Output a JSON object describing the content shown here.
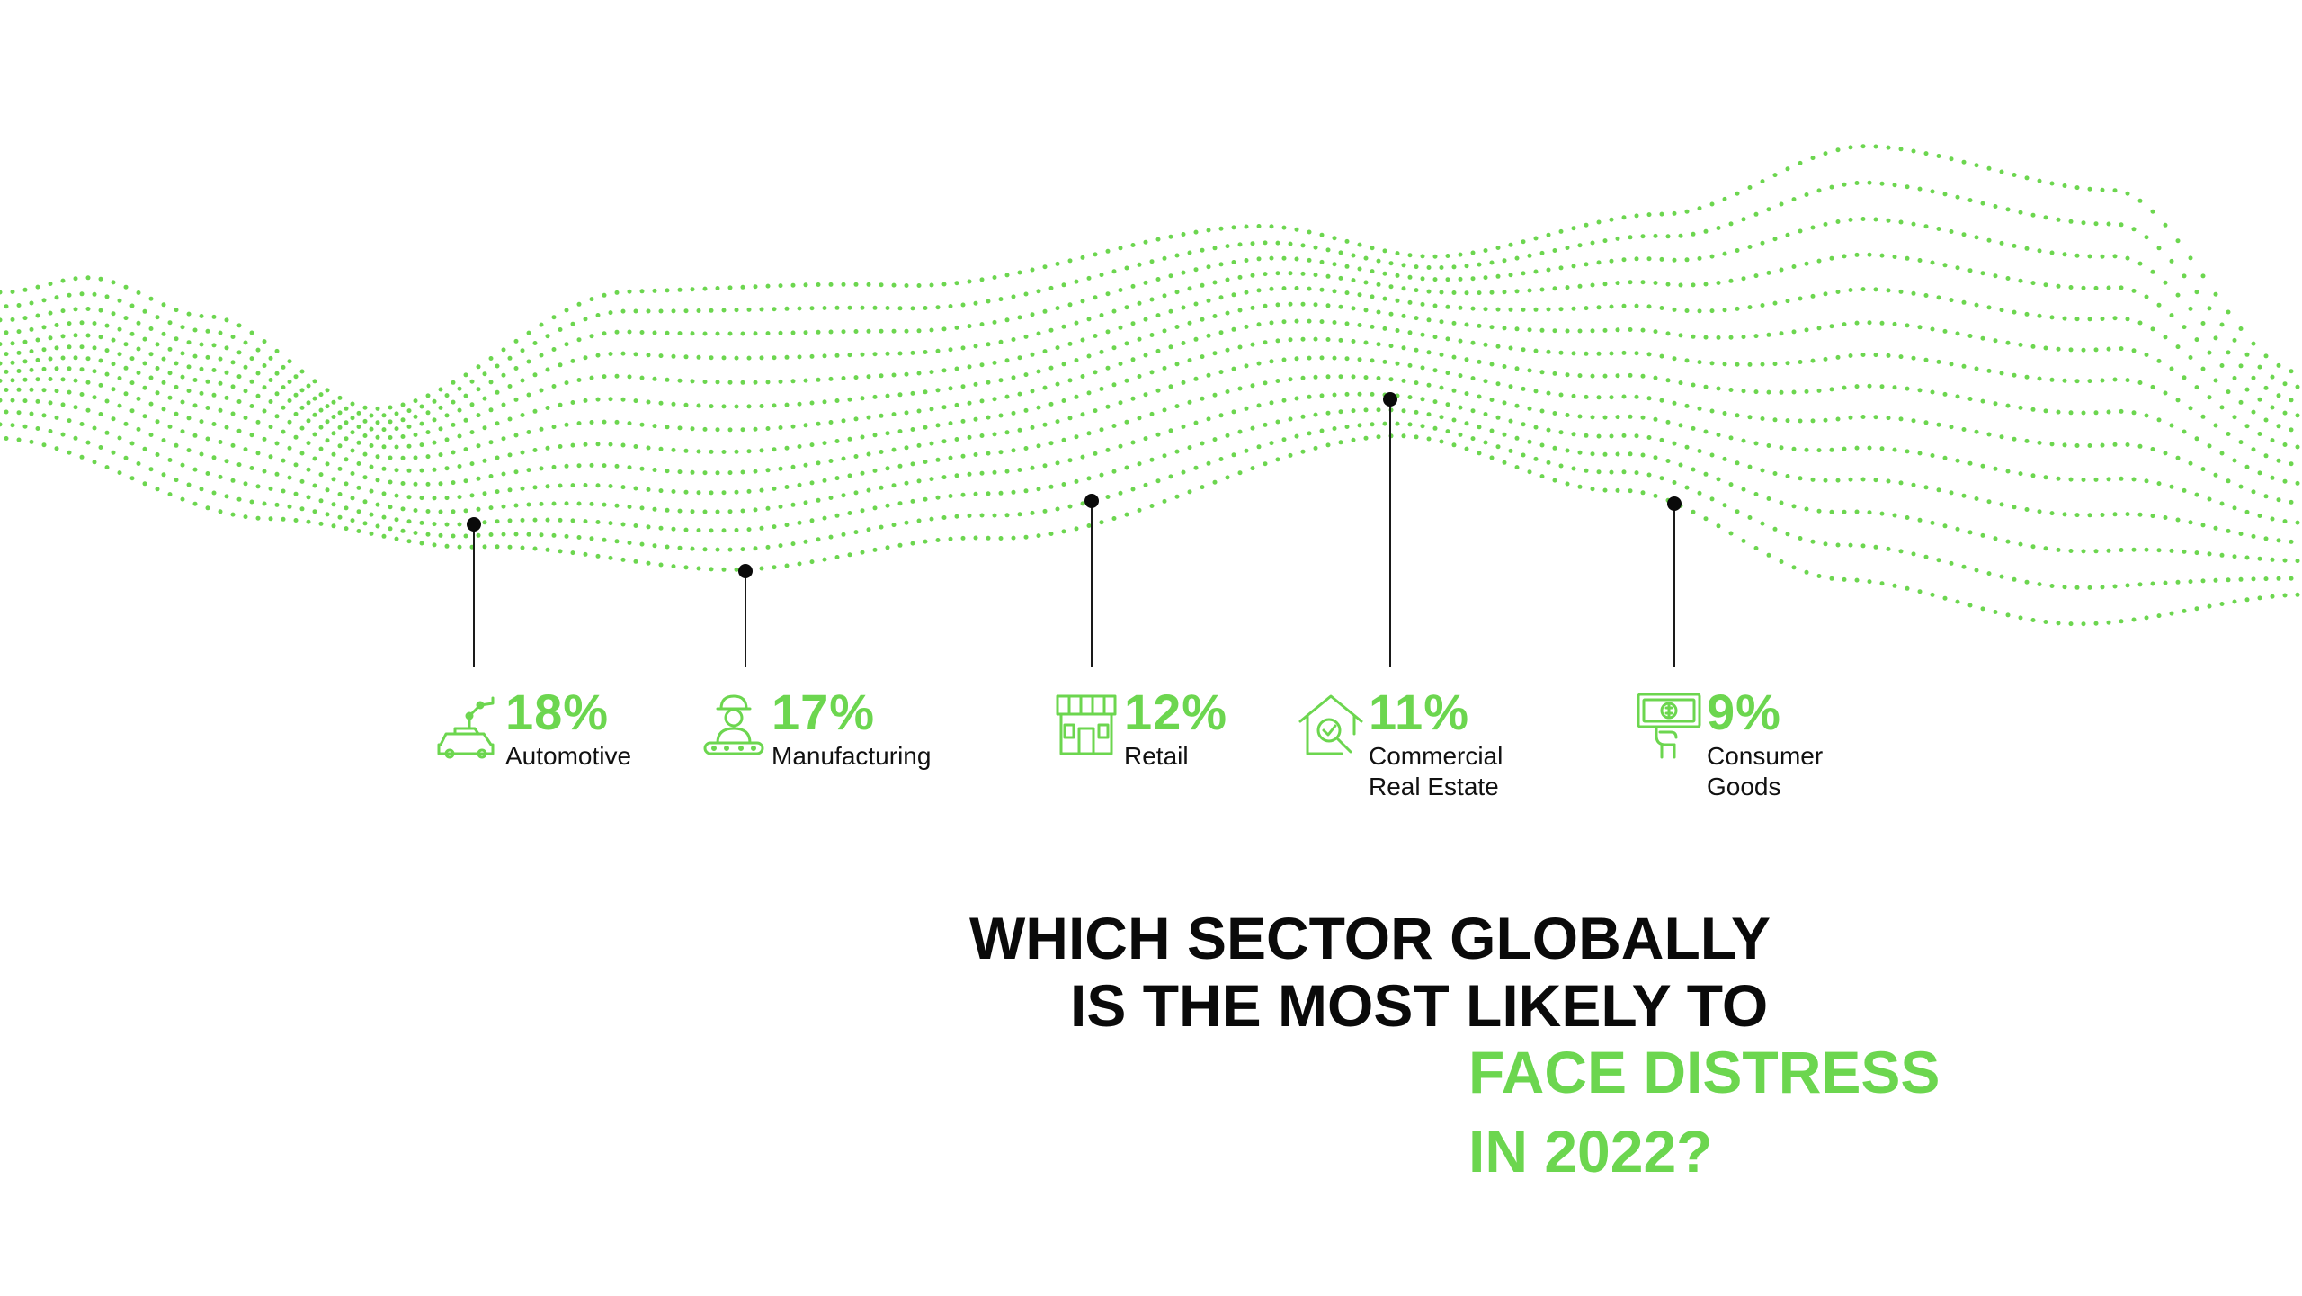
{
  "accent_color": "#6cd64f",
  "chart_data": {
    "type": "bar",
    "categories": [
      "Automotive",
      "Manufacturing",
      "Retail",
      "Commercial Real Estate",
      "Consumer Goods"
    ],
    "values": [
      18,
      17,
      12,
      11,
      9
    ],
    "value_suffix": "%",
    "legend": false
  },
  "sectors": [
    {
      "value": "18%",
      "label_lines": [
        "Automotive"
      ],
      "icon": "car-robotic-arm-icon"
    },
    {
      "value": "17%",
      "label_lines": [
        "Manufacturing"
      ],
      "icon": "worker-conveyor-icon"
    },
    {
      "value": "12%",
      "label_lines": [
        "Retail"
      ],
      "icon": "storefront-icon"
    },
    {
      "value": "11%",
      "label_lines": [
        "Commercial",
        "Real Estate"
      ],
      "icon": "house-search-icon"
    },
    {
      "value": "9%",
      "label_lines": [
        "Consumer",
        "Goods"
      ],
      "icon": "hand-money-icon"
    }
  ],
  "question": {
    "line1": "WHICH SECTOR GLOBALLY",
    "line2": "IS THE MOST LIKELY TO",
    "line3": "FACE DISTRESS",
    "line4": "IN 2022?"
  }
}
